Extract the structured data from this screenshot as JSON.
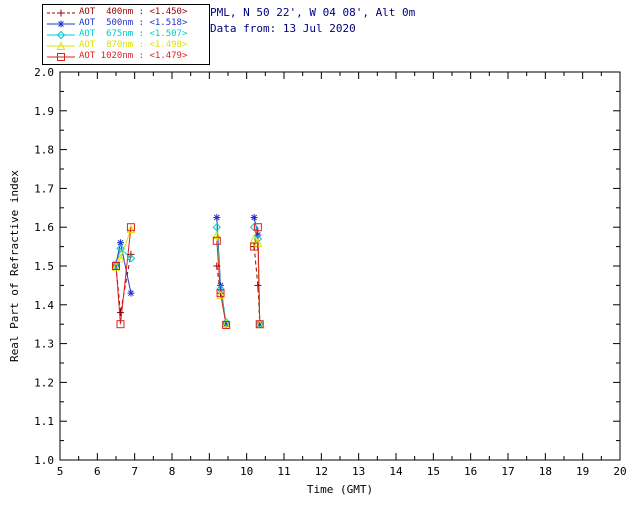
{
  "header": {
    "station": "PML, N 50 22', W 04 08', Alt 0m",
    "data_from": "Data from: 13 Jul 2020",
    "text_color": "#000080"
  },
  "legend": {
    "entries": [
      {
        "label": "AOT  400nm :",
        "value": "<1.450>",
        "color": "#990000",
        "marker": "plus",
        "linestyle": "dashed"
      },
      {
        "label": "AOT  500nm :",
        "value": "<1.518>",
        "color": "#2233CC",
        "marker": "asterisk",
        "linestyle": "solid"
      },
      {
        "label": "AOT  675nm :",
        "value": "<1.507>",
        "color": "#00CCCC",
        "marker": "diamond",
        "linestyle": "solid"
      },
      {
        "label": "AOT  870nm :",
        "value": "<1.498>",
        "color": "#E0E000",
        "marker": "triangle",
        "linestyle": "solid"
      },
      {
        "label": "AOT 1020nm :",
        "value": "<1.479>",
        "color": "#DD2222",
        "marker": "square",
        "linestyle": "solid"
      }
    ]
  },
  "chart_data": {
    "type": "line",
    "title": "",
    "xlabel": "Time (GMT)",
    "ylabel": "Real Part of Refractive index",
    "xlim": [
      5,
      20
    ],
    "ylim": [
      1.0,
      2.0
    ],
    "xtick_step": 1,
    "ytick_step": 0.1,
    "grid": false,
    "legend_position": "top-left",
    "series": [
      {
        "name": "AOT 400nm",
        "mean": 1.45,
        "color": "#990000",
        "marker": "plus",
        "linestyle": "dashed",
        "segments": [
          {
            "x": [
              6.5,
              6.62,
              6.9
            ],
            "y": [
              1.5,
              1.38,
              1.53
            ]
          },
          {
            "x": [
              9.2,
              9.3,
              9.45
            ],
            "y": [
              1.5,
              1.43,
              1.35
            ]
          },
          {
            "x": [
              10.2,
              10.3,
              10.35
            ],
            "y": [
              1.55,
              1.45,
              1.35
            ]
          }
        ]
      },
      {
        "name": "AOT 500nm",
        "mean": 1.518,
        "color": "#2233CC",
        "marker": "asterisk",
        "linestyle": "solid",
        "segments": [
          {
            "x": [
              6.5,
              6.62,
              6.9
            ],
            "y": [
              1.505,
              1.56,
              1.43
            ]
          },
          {
            "x": [
              9.2,
              9.3,
              9.45
            ],
            "y": [
              1.625,
              1.45,
              1.35
            ]
          },
          {
            "x": [
              10.2,
              10.3,
              10.35
            ],
            "y": [
              1.625,
              1.58,
              1.35
            ]
          }
        ]
      },
      {
        "name": "AOT 675nm",
        "mean": 1.507,
        "color": "#00CCCC",
        "marker": "diamond",
        "linestyle": "solid",
        "segments": [
          {
            "x": [
              6.5,
              6.62,
              6.9
            ],
            "y": [
              1.5,
              1.545,
              1.52
            ]
          },
          {
            "x": [
              9.2,
              9.3,
              9.45
            ],
            "y": [
              1.6,
              1.44,
              1.355
            ]
          },
          {
            "x": [
              10.2,
              10.3,
              10.35
            ],
            "y": [
              1.6,
              1.57,
              1.352
            ]
          }
        ]
      },
      {
        "name": "AOT 870nm",
        "mean": 1.498,
        "color": "#E0E000",
        "marker": "triangle",
        "linestyle": "solid",
        "segments": [
          {
            "x": [
              6.5,
              6.62,
              6.9
            ],
            "y": [
              1.498,
              1.52,
              1.595
            ]
          },
          {
            "x": [
              9.2,
              9.3,
              9.45
            ],
            "y": [
              1.58,
              1.425,
              1.352
            ]
          },
          {
            "x": [
              10.2,
              10.3,
              10.35
            ],
            "y": [
              1.57,
              1.56,
              1.35
            ]
          }
        ]
      },
      {
        "name": "AOT 1020nm",
        "mean": 1.479,
        "color": "#DD2222",
        "marker": "square",
        "linestyle": "solid",
        "segments": [
          {
            "x": [
              6.5,
              6.62,
              6.9
            ],
            "y": [
              1.5,
              1.35,
              1.6
            ]
          },
          {
            "x": [
              9.2,
              9.3,
              9.45
            ],
            "y": [
              1.565,
              1.43,
              1.348
            ]
          },
          {
            "x": [
              10.2,
              10.3,
              10.35
            ],
            "y": [
              1.55,
              1.6,
              1.35
            ]
          }
        ]
      }
    ]
  }
}
